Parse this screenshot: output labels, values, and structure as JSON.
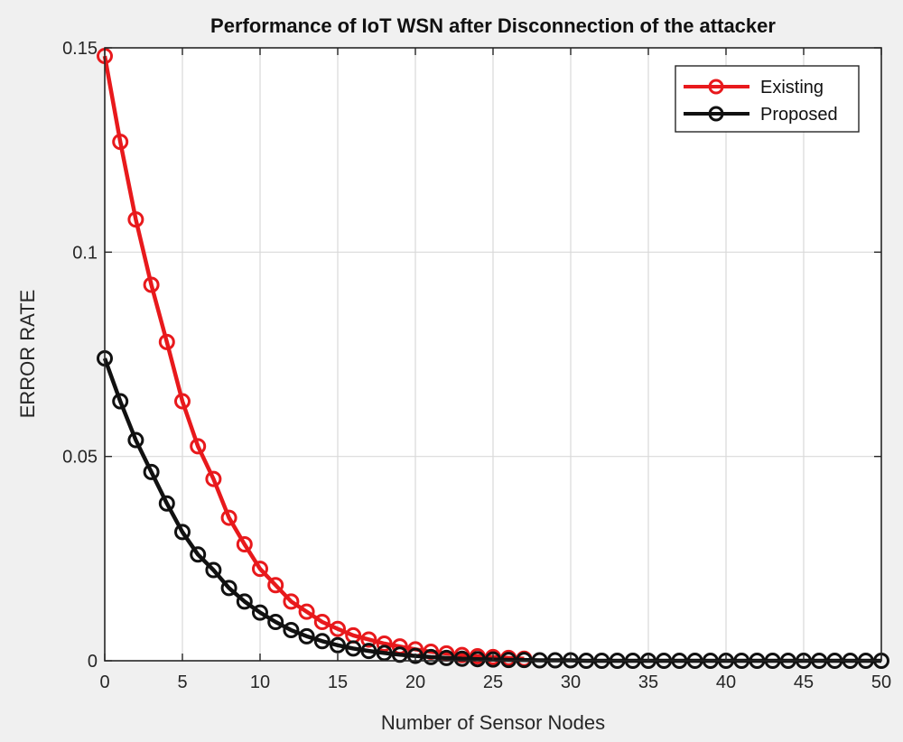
{
  "chart_data": {
    "type": "line",
    "title": "Performance of IoT WSN after Disconnection of the attacker",
    "xlabel": "Number of Sensor Nodes",
    "ylabel": "ERROR RATE",
    "xlim": [
      0,
      50
    ],
    "ylim": [
      0,
      0.15
    ],
    "xticks": [
      0,
      5,
      10,
      15,
      20,
      25,
      30,
      35,
      40,
      45,
      50
    ],
    "xtick_labels": [
      "0",
      "5",
      "10",
      "15",
      "20",
      "25",
      "30",
      "35",
      "40",
      "45",
      "50"
    ],
    "yticks": [
      0,
      0.05,
      0.1,
      0.15
    ],
    "ytick_labels": [
      "0",
      "0.05",
      "0.1",
      "0.15"
    ],
    "grid": true,
    "legend_position": "top-right",
    "series": [
      {
        "name": "Existing",
        "color": "#e8191c",
        "marker": "circle",
        "x": [
          0,
          1,
          2,
          3,
          4,
          5,
          6,
          7,
          8,
          9,
          10,
          11,
          12,
          13,
          14,
          15,
          16,
          17,
          18,
          19,
          20,
          21,
          22,
          23,
          24,
          25,
          26,
          27
        ],
        "values": [
          0.148,
          0.127,
          0.108,
          0.092,
          0.078,
          0.0635,
          0.0525,
          0.0445,
          0.035,
          0.0285,
          0.0225,
          0.0185,
          0.0145,
          0.012,
          0.0095,
          0.0078,
          0.0062,
          0.0052,
          0.0042,
          0.0035,
          0.0028,
          0.0022,
          0.0018,
          0.0014,
          0.0011,
          0.0009,
          0.0007,
          0.0005
        ]
      },
      {
        "name": "Proposed",
        "color": "#111111",
        "marker": "circle",
        "x": [
          0,
          1,
          2,
          3,
          4,
          5,
          6,
          7,
          8,
          9,
          10,
          11,
          12,
          13,
          14,
          15,
          16,
          17,
          18,
          19,
          20,
          21,
          22,
          23,
          24,
          25,
          26,
          27,
          28,
          29,
          30,
          31,
          32,
          33,
          34,
          35,
          36,
          37,
          38,
          39,
          40,
          41,
          42,
          43,
          44,
          45,
          46,
          47,
          48,
          49,
          50
        ],
        "values": [
          0.074,
          0.0635,
          0.054,
          0.0462,
          0.0385,
          0.0315,
          0.026,
          0.0222,
          0.0178,
          0.0145,
          0.0118,
          0.0095,
          0.0075,
          0.006,
          0.0048,
          0.0038,
          0.003,
          0.0024,
          0.0019,
          0.0015,
          0.0012,
          0.0009,
          0.0007,
          0.0005,
          0.0004,
          0.0003,
          0.0002,
          0.0002,
          0.0001,
          0.0001,
          0.0001,
          0,
          0,
          0,
          0,
          0,
          0,
          0,
          0,
          0,
          0,
          0,
          0,
          0,
          0,
          0,
          0,
          0,
          0,
          0,
          0
        ]
      }
    ]
  }
}
